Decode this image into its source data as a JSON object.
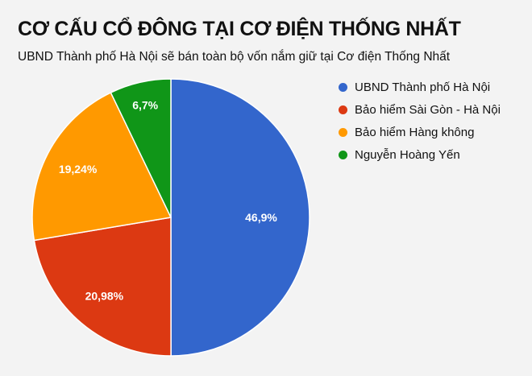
{
  "chart_data": {
    "type": "pie",
    "title": "CƠ CẤU CỔ ĐÔNG TẠI CƠ ĐIỆN THỐNG NHẤT",
    "subtitle": "UBND Thành phố Hà Nội sẽ bán toàn bộ vốn nắm giữ tại Cơ điện Thống Nhất",
    "legend_position": "right",
    "slices": [
      {
        "name": "UBND Thành phố Hà Nội",
        "value": 46.9,
        "label": "46,9%",
        "color": "#3366cc"
      },
      {
        "name": "Bảo hiểm Sài Gòn - Hà Nội",
        "value": 20.98,
        "label": "20,98%",
        "color": "#dc3912"
      },
      {
        "name": "Bảo hiểm Hàng không",
        "value": 19.24,
        "label": "19,24%",
        "color": "#ff9900"
      },
      {
        "name": "Nguyễn Hoàng Yến",
        "value": 6.7,
        "label": "6,7%",
        "color": "#109618"
      }
    ]
  }
}
